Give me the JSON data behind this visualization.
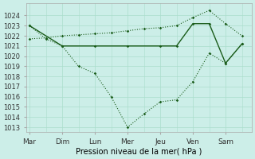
{
  "xlabel": "Pression niveau de la mer( hPa )",
  "background_color": "#cceee8",
  "grid_color": "#aaddcc",
  "line_color": "#1a5c1a",
  "ylim": [
    1012.5,
    1025.2
  ],
  "yticks": [
    1013,
    1014,
    1015,
    1016,
    1017,
    1018,
    1019,
    1020,
    1021,
    1022,
    1023,
    1024
  ],
  "days": [
    "Mar",
    "Dim",
    "Lun",
    "Mer",
    "Jeu",
    "Ven",
    "Sam"
  ],
  "day_positions": [
    0,
    1,
    2,
    3,
    4,
    5,
    6
  ],
  "xlim": [
    -0.1,
    6.8
  ],
  "line1_x": [
    0,
    0.5,
    1.0,
    1.5,
    2.0,
    2.5,
    3.0,
    3.5,
    4.0,
    4.5,
    5.0,
    5.5,
    6.0,
    6.5
  ],
  "line1_y": [
    1023.0,
    1021.7,
    1021.0,
    1019.0,
    1018.3,
    1016.0,
    1013.0,
    1014.3,
    1015.5,
    1015.7,
    1017.5,
    1020.3,
    1019.3,
    1021.2
  ],
  "line2_x": [
    0,
    0.5,
    1.0,
    1.5,
    2.0,
    2.5,
    3.0,
    3.5,
    4.0,
    4.5,
    5.0,
    5.5,
    6.0,
    6.5
  ],
  "line2_y": [
    1021.7,
    1021.8,
    1022.0,
    1022.1,
    1022.2,
    1022.3,
    1022.5,
    1022.7,
    1022.8,
    1023.0,
    1023.8,
    1024.5,
    1023.2,
    1022.0
  ],
  "line3_x": [
    0,
    1,
    2,
    3,
    4,
    4.5,
    5,
    5.5,
    6,
    6.5
  ],
  "line3_y": [
    1023.0,
    1021.0,
    1021.0,
    1021.0,
    1021.0,
    1021.0,
    1023.2,
    1023.2,
    1019.3,
    1021.2
  ]
}
